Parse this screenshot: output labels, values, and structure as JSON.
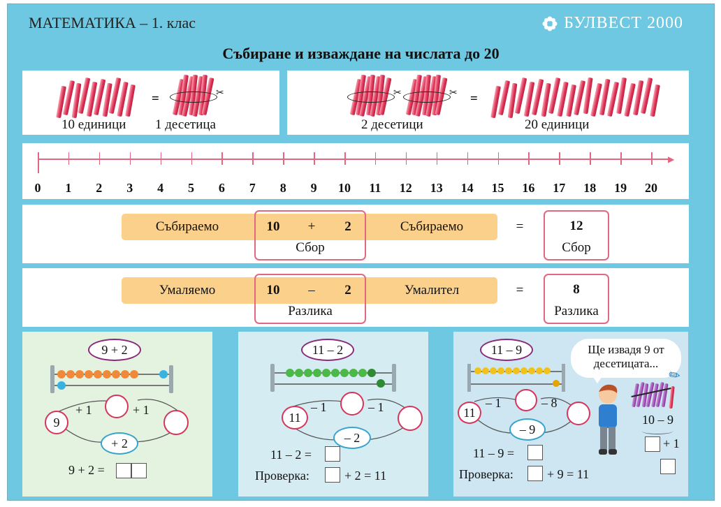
{
  "header": {
    "subject": "МАТЕМАТИКА – 1. клас",
    "publisher": "БУЛВЕСТ 2000",
    "title": "Събиране и изваждане на числата до 20"
  },
  "colors": {
    "background": "#6fc8e1",
    "accent_pink": "#e26882",
    "orange_bar": "#fbd08a"
  },
  "row1": {
    "eq": "=",
    "ten_units": "10 единици",
    "one_ten": "1 десетица",
    "two_tens": "2 десетици",
    "twenty_units": "20 единици"
  },
  "number_line": {
    "labels": [
      "0",
      "1",
      "2",
      "3",
      "4",
      "5",
      "6",
      "7",
      "8",
      "9",
      "10",
      "11",
      "12",
      "13",
      "14",
      "15",
      "16",
      "17",
      "18",
      "19",
      "20"
    ]
  },
  "addition": {
    "addend": "Събираемо",
    "a": "10",
    "op": "+",
    "b": "2",
    "eq": "=",
    "result": "12",
    "sum_label": "Сбор"
  },
  "subtraction": {
    "minuend": "Умаляемо",
    "a": "10",
    "op": "–",
    "b": "2",
    "subtrahend": "Умалител",
    "eq": "=",
    "result": "8",
    "diff_label": "Разлика"
  },
  "ex1": {
    "expr": "9 + 2",
    "start": "9",
    "step": "+ 1",
    "total_step": "+ 2",
    "eq": "9 + 2 ="
  },
  "ex2": {
    "expr": "11 – 2",
    "start": "11",
    "step": "– 1",
    "total_step": "– 2",
    "eq": "11 – 2 =",
    "check": "Проверка:",
    "check_rest": "+ 2 = 11"
  },
  "ex3": {
    "expr": "11 – 9",
    "start": "11",
    "step1": "– 1",
    "step2": "– 8",
    "total_step": "– 9",
    "eq": "11 – 9 =",
    "check": "Проверка:",
    "check_rest": "+ 9 = 11",
    "bubble_1": "Ще извадя 9 от",
    "bubble_2": "десетицата...",
    "split": "10 – 9",
    "split_plus": "+ 1"
  }
}
